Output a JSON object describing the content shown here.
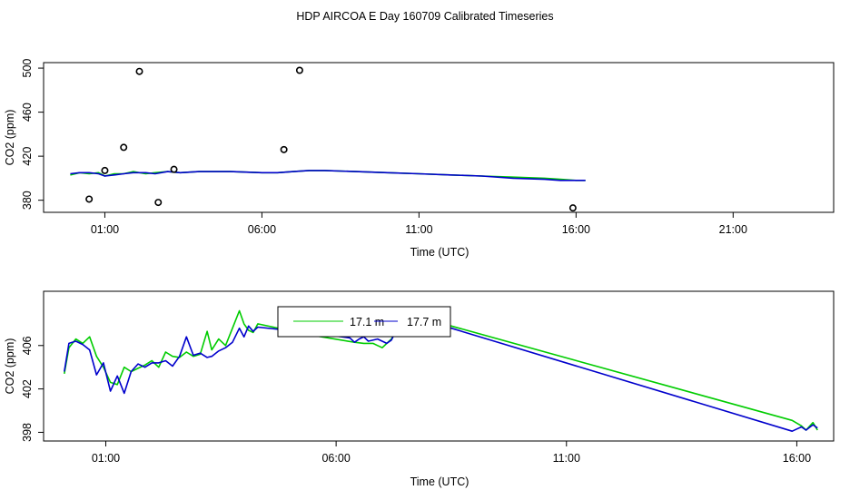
{
  "title": "HDP AIRCOA E  Day 160709  Calibrated Timeseries",
  "colors": {
    "green": "#00cc00",
    "blue": "#0000cc",
    "frame": "#000000"
  },
  "chart_data": [
    {
      "type": "line",
      "name": "top",
      "xlabel": "Time (UTC)",
      "ylabel": "CO2 (ppm)",
      "xlim": [
        -0.95,
        24.2
      ],
      "ylim": [
        369,
        505
      ],
      "x_ticks": [
        1,
        6,
        11,
        16,
        21
      ],
      "x_tick_labels": [
        "01:00",
        "06:00",
        "11:00",
        "16:00",
        "21:00"
      ],
      "y_ticks": [
        380,
        420,
        460,
        500
      ],
      "y_tick_labels": [
        "380",
        "420",
        "460",
        "500"
      ],
      "series": [
        {
          "color": "green",
          "x": [
            -0.1,
            0.2,
            0.5,
            0.8,
            1.0,
            1.3,
            1.6,
            1.9,
            2.3,
            2.6,
            3.0,
            3.4,
            4.0,
            5.0,
            6.0,
            6.5,
            7.0,
            7.5,
            8.0,
            9.0,
            10.0,
            11.0,
            12.0,
            13.0,
            14.0,
            15.0,
            15.5,
            16.0,
            16.3
          ],
          "y": [
            403,
            405,
            404,
            405,
            402,
            404,
            404,
            406,
            404,
            405,
            406,
            405,
            406,
            406,
            405,
            405,
            406,
            407,
            407,
            406,
            405,
            404,
            403,
            402,
            401,
            400,
            399,
            398,
            398
          ]
        },
        {
          "color": "blue",
          "x": [
            -0.1,
            0.2,
            0.5,
            0.8,
            1.0,
            1.3,
            1.6,
            1.9,
            2.3,
            2.6,
            3.0,
            3.4,
            4.0,
            5.0,
            6.0,
            6.5,
            7.0,
            7.5,
            8.0,
            9.0,
            10.0,
            11.0,
            12.0,
            13.0,
            14.0,
            15.0,
            15.5,
            16.0,
            16.3
          ],
          "y": [
            404,
            405,
            405,
            404,
            402,
            403,
            404,
            405,
            405,
            404,
            406,
            405,
            406,
            406,
            405,
            405,
            406,
            407,
            407,
            406,
            405,
            404,
            403,
            402,
            400,
            399,
            398,
            398,
            398
          ]
        }
      ],
      "outliers": {
        "x": [
          0.5,
          1.0,
          1.6,
          2.1,
          2.7,
          3.2,
          6.7,
          7.2,
          15.9
        ],
        "y": [
          381,
          407,
          428,
          497,
          378,
          408,
          426,
          498,
          373
        ]
      }
    },
    {
      "type": "line",
      "name": "bottom",
      "xlabel": "Time (UTC)",
      "ylabel": "CO2 (ppm)",
      "xlim": [
        -0.35,
        16.8
      ],
      "ylim": [
        397.2,
        411.0
      ],
      "x_ticks": [
        1,
        6,
        11,
        16
      ],
      "x_tick_labels": [
        "01:00",
        "06:00",
        "11:00",
        "16:00"
      ],
      "y_ticks": [
        398,
        402,
        406
      ],
      "y_tick_labels": [
        "398",
        "402",
        "406"
      ],
      "legend": {
        "position": "top-center",
        "entries": [
          "17.1 m",
          "17.7 m"
        ],
        "colors": [
          "green",
          "blue"
        ]
      },
      "series": [
        {
          "name": "17.1 m",
          "color": "green",
          "x": [
            0.1,
            0.2,
            0.35,
            0.5,
            0.65,
            0.8,
            0.95,
            1.1,
            1.25,
            1.4,
            1.55,
            1.7,
            1.85,
            2.0,
            2.15,
            2.3,
            2.45,
            2.6,
            2.75,
            2.9,
            3.05,
            3.2,
            3.3,
            3.45,
            3.6,
            3.75,
            3.9,
            4.0,
            4.1,
            4.2,
            4.3,
            5.4,
            6.4,
            6.6,
            6.8,
            6.9,
            7.0,
            7.2,
            7.4,
            7.55,
            7.65,
            8.0,
            8.5,
            15.9,
            16.1,
            16.2,
            16.35,
            16.45
          ],
          "y": [
            403.4,
            405.8,
            406.6,
            406.2,
            406.8,
            405.0,
            404.0,
            402.6,
            402.4,
            404.0,
            403.6,
            403.9,
            404.2,
            404.6,
            404.0,
            405.4,
            405.0,
            404.9,
            405.4,
            405.0,
            405.2,
            407.3,
            405.6,
            406.6,
            406.0,
            407.6,
            409.2,
            408.0,
            407.4,
            407.2,
            408.0,
            407.0,
            406.3,
            406.2,
            406.2,
            406.0,
            405.8,
            406.6,
            407.8,
            408.0,
            409.1,
            408.4,
            407.8,
            399.1,
            398.6,
            398.2,
            398.9,
            398.2
          ]
        },
        {
          "name": "17.7 m",
          "color": "blue",
          "x": [
            0.1,
            0.2,
            0.35,
            0.5,
            0.65,
            0.8,
            0.95,
            1.1,
            1.25,
            1.4,
            1.55,
            1.7,
            1.85,
            2.0,
            2.15,
            2.3,
            2.45,
            2.6,
            2.75,
            2.9,
            3.05,
            3.2,
            3.3,
            3.45,
            3.6,
            3.75,
            3.9,
            4.0,
            4.1,
            4.2,
            4.3,
            5.4,
            6.3,
            6.4,
            6.5,
            6.6,
            6.7,
            6.9,
            7.1,
            7.2,
            7.4,
            7.6,
            7.8,
            8.1,
            8.5,
            15.9,
            16.0,
            16.1,
            16.2,
            16.35,
            16.45
          ],
          "y": [
            403.6,
            406.2,
            406.4,
            406.1,
            405.6,
            403.3,
            404.4,
            401.8,
            403.2,
            401.6,
            403.6,
            404.3,
            404.0,
            404.4,
            404.4,
            404.6,
            404.1,
            405.0,
            406.8,
            405.1,
            405.3,
            404.9,
            405.0,
            405.5,
            405.8,
            406.3,
            407.6,
            406.8,
            407.8,
            407.3,
            407.7,
            407.2,
            406.7,
            406.3,
            406.6,
            406.8,
            406.4,
            406.6,
            406.2,
            406.5,
            408.2,
            408.9,
            408.3,
            408.0,
            407.6,
            398.1,
            398.3,
            398.5,
            398.2,
            398.7,
            398.4
          ]
        }
      ]
    }
  ]
}
